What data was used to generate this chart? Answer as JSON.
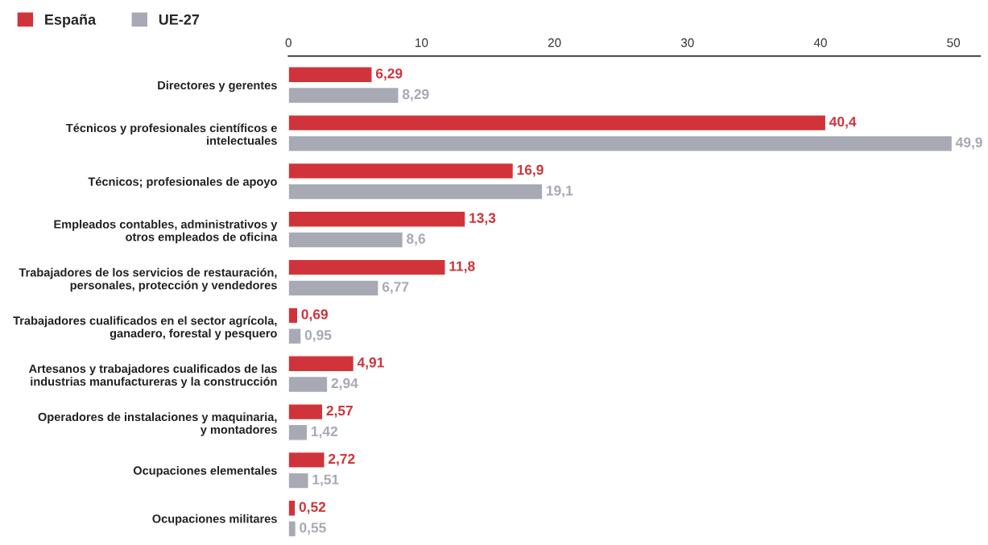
{
  "chart_data": {
    "type": "bar",
    "orientation": "horizontal",
    "categories": [
      "Directores y gerentes",
      "Técnicos y profesionales científicos e\nintelectuales",
      "Técnicos; profesionales de apoyo",
      "Empleados contables, administrativos y\notros empleados de oficina",
      "Trabajadores de los servicios de restauración,\npersonales, protección y vendedores",
      "Trabajadores cualificados en el sector agrícola,\nganadero, forestal y pesquero",
      "Artesanos y trabajadores cualificados de las\nindustrias manufactureras y la construcción",
      "Operadores de instalaciones y maquinaria,\ny montadores",
      "Ocupaciones elementales",
      "Ocupaciones militares"
    ],
    "series": [
      {
        "name": "España",
        "color": "#d0343a",
        "values": [
          6.29,
          40.4,
          16.9,
          13.3,
          11.8,
          0.69,
          4.91,
          2.57,
          2.72,
          0.52
        ],
        "value_labels": [
          "6,29",
          "40,4",
          "16,9",
          "13,3",
          "11,8",
          "0,69",
          "4,91",
          "2,57",
          "2,72",
          "0,52"
        ]
      },
      {
        "name": "UE-27",
        "color": "#a7a9b4",
        "values": [
          8.29,
          49.9,
          19.1,
          8.6,
          6.77,
          0.95,
          2.94,
          1.42,
          1.51,
          0.55
        ],
        "value_labels": [
          "8,29",
          "49,9",
          "19,1",
          "8,6",
          "6,77",
          "0,95",
          "2,94",
          "1,42",
          "1,51",
          "0,55"
        ]
      }
    ],
    "xlim": [
      0,
      52
    ],
    "xticks": [
      0,
      10,
      20,
      30,
      40,
      50
    ],
    "grid": false,
    "legend": "top left"
  }
}
